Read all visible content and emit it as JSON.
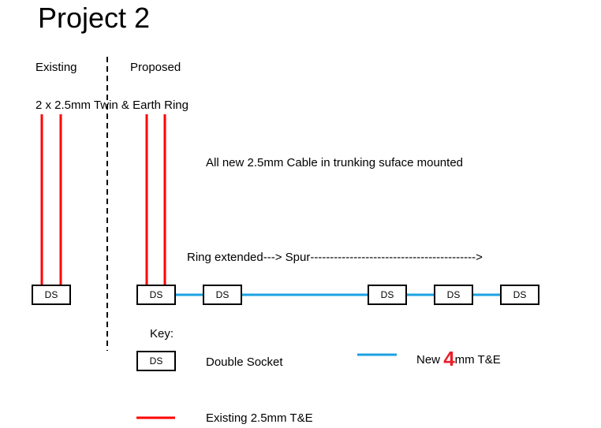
{
  "title": "Project 2",
  "existing_label": "Existing",
  "proposed_label": "Proposed",
  "ring_label": "2 x  2.5mm Twin & Earth Ring",
  "cable_note": "All new 2.5mm Cable in trunking suface mounted",
  "ring_extended_label": "Ring extended---> Spur------------------------------------------>",
  "socket_label": "DS",
  "key": {
    "title": "Key:",
    "double_socket": "Double Socket",
    "new_prefix": "New",
    "new_size": "4",
    "new_suffix": "mm T&E",
    "existing": "Existing 2.5mm T&E"
  },
  "colors": {
    "existing_cable": "#ff0000",
    "new_cable": "#1ba1e2",
    "size_highlight": "#e8202a"
  }
}
